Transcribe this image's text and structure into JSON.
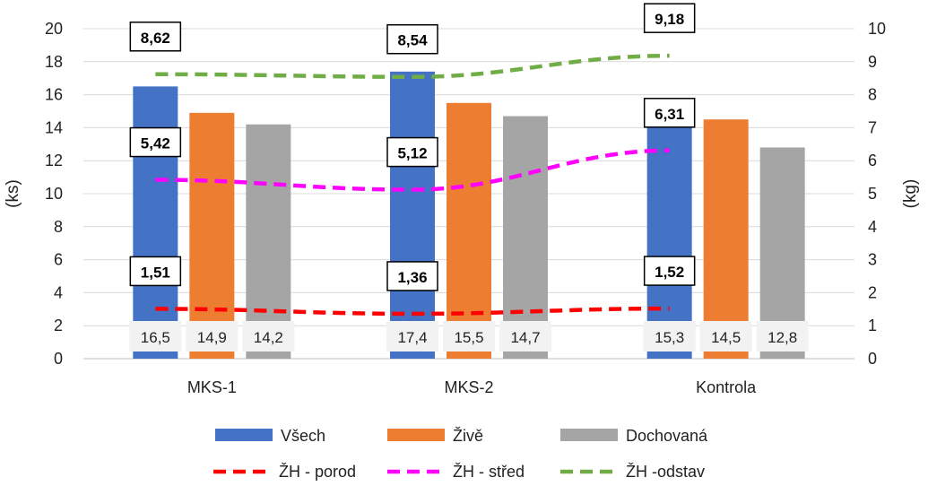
{
  "chart_data": {
    "type": "bar",
    "categories": [
      "MKS-1",
      "MKS-2",
      "Kontrola"
    ],
    "y_left": {
      "label": "(ks)",
      "range": [
        0,
        20
      ],
      "ticks": [
        "0",
        "2",
        "4",
        "6",
        "8",
        "10",
        "12",
        "14",
        "16",
        "18",
        "20"
      ]
    },
    "y_right": {
      "label": "(kg)",
      "range": [
        0,
        10
      ],
      "ticks": [
        "0",
        "1",
        "2",
        "3",
        "4",
        "5",
        "6",
        "7",
        "8",
        "9",
        "10"
      ]
    },
    "grid": true,
    "legend_position": "bottom",
    "bar_series": [
      {
        "name": "Všech",
        "color": "#4472C4",
        "values": [
          16.5,
          17.4,
          15.3
        ],
        "labels": [
          "16,5",
          "17,4",
          "15,3"
        ]
      },
      {
        "name": "Živě",
        "color": "#ED7D31",
        "values": [
          14.9,
          15.5,
          14.5
        ],
        "labels": [
          "14,9",
          "15,5",
          "14,5"
        ]
      },
      {
        "name": "Dochovaná",
        "color": "#A5A5A5",
        "values": [
          14.2,
          14.7,
          12.8
        ],
        "labels": [
          "14,2",
          "14,7",
          "12,8"
        ]
      }
    ],
    "line_series": [
      {
        "name": "ŽH - porod",
        "color": "#FF0000",
        "axis": "right",
        "style": "dashed",
        "values": [
          1.51,
          1.36,
          1.52
        ],
        "labels": [
          "1,51",
          "1,36",
          "1,52"
        ]
      },
      {
        "name": "ŽH - střed",
        "color": "#FF00FF",
        "axis": "right",
        "style": "dashed",
        "values": [
          5.42,
          5.12,
          6.31
        ],
        "labels": [
          "5,42",
          "5,12",
          "6,31"
        ]
      },
      {
        "name": "ŽH -odstav",
        "color": "#70AD47",
        "axis": "right",
        "style": "dashed",
        "values": [
          8.62,
          8.54,
          9.18
        ],
        "labels": [
          "8,62",
          "8,54",
          "9,18"
        ]
      }
    ]
  }
}
